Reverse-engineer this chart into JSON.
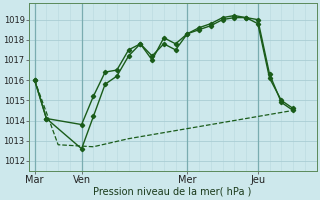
{
  "title": "Pression niveau de la mer( hPa )",
  "bg_color": "#cde8ec",
  "grid_color_h": "#aacdd4",
  "grid_color_v": "#aacdd4",
  "line_color": "#1a5c1a",
  "ylim": [
    1011.5,
    1019.8
  ],
  "yticks": [
    1012,
    1013,
    1014,
    1015,
    1016,
    1017,
    1018,
    1019
  ],
  "xtick_labels": [
    "Mar",
    "Ven",
    "Mer",
    "Jeu"
  ],
  "xtick_positions": [
    0,
    4,
    13,
    19
  ],
  "vline_x": [
    0,
    4,
    13,
    19
  ],
  "xlim": [
    -0.5,
    24
  ],
  "series1_x": [
    0,
    1,
    4,
    5,
    6,
    7,
    8,
    9,
    10,
    11,
    12,
    13,
    14,
    15,
    16,
    17,
    18,
    19,
    20,
    21,
    22
  ],
  "series1_y": [
    1016.0,
    1014.1,
    1013.8,
    1015.2,
    1016.4,
    1016.5,
    1017.5,
    1017.8,
    1017.2,
    1017.8,
    1017.5,
    1018.3,
    1018.6,
    1018.8,
    1019.1,
    1019.2,
    1019.1,
    1018.8,
    1016.1,
    1015.0,
    1014.6
  ],
  "series2_x": [
    0,
    1,
    4,
    5,
    6,
    7,
    8,
    9,
    10,
    11,
    12,
    13,
    14,
    15,
    16,
    17,
    18,
    19,
    20,
    21,
    22
  ],
  "series2_y": [
    1016.0,
    1014.1,
    1012.6,
    1014.2,
    1015.8,
    1016.2,
    1017.2,
    1017.8,
    1017.0,
    1018.1,
    1017.8,
    1018.3,
    1018.5,
    1018.7,
    1019.0,
    1019.1,
    1019.1,
    1019.0,
    1016.3,
    1014.9,
    1014.5
  ],
  "series3_x": [
    0,
    2,
    5,
    8,
    11,
    14,
    17,
    20,
    22
  ],
  "series3_y": [
    1016.0,
    1012.8,
    1012.7,
    1013.1,
    1013.4,
    1013.7,
    1014.0,
    1014.3,
    1014.5
  ],
  "ylabel_fontsize": 7,
  "ytick_fontsize": 6,
  "xtick_fontsize": 7
}
